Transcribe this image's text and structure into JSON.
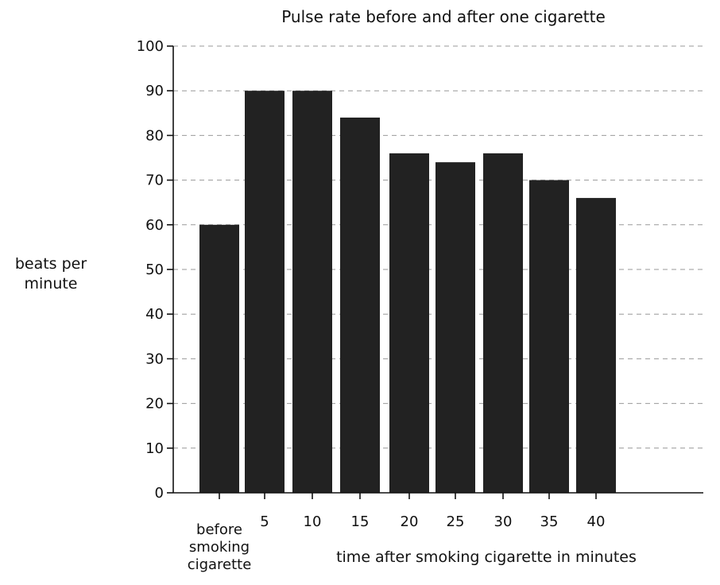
{
  "chart_data": {
    "type": "bar",
    "title": "Pulse rate before and after one cigarette",
    "categories": [
      "before smoking cigarette",
      "5",
      "10",
      "15",
      "20",
      "25",
      "30",
      "35",
      "40"
    ],
    "values": [
      60,
      90,
      90,
      84,
      76,
      74,
      76,
      70,
      66
    ],
    "ylabel": "beats per minute",
    "xlabel": "time after smoking cigarette in minutes",
    "ylim": [
      0,
      100
    ],
    "y_ticks": [
      0,
      10,
      20,
      30,
      40,
      50,
      60,
      70,
      80,
      90,
      100
    ],
    "grid": true,
    "bar_color": "#222222"
  }
}
